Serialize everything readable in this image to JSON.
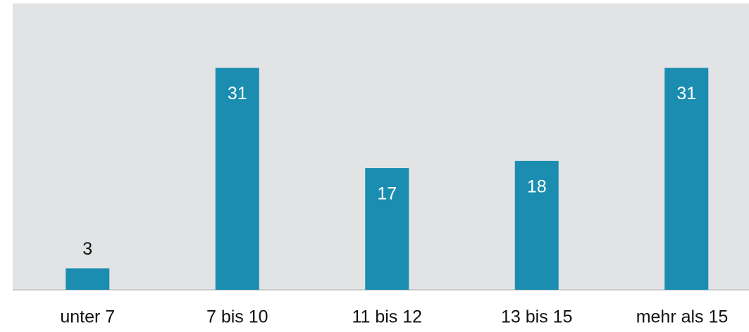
{
  "chart_data": {
    "type": "bar",
    "categories": [
      "unter 7",
      "7 bis 10",
      "11 bis 12",
      "13 bis 15",
      "mehr als 15"
    ],
    "values": [
      3,
      31,
      17,
      18,
      31
    ],
    "color": "#1a8db0",
    "ylim": [
      0,
      40
    ]
  }
}
